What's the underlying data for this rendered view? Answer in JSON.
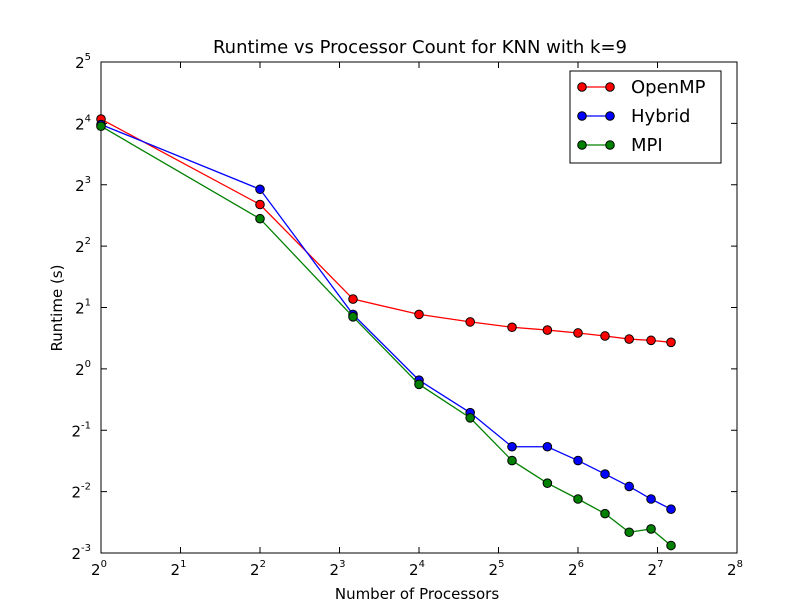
{
  "chart_data": {
    "type": "line",
    "title": "Runtime vs Processor Count for KNN with k=9",
    "xlabel": "Number of Processors",
    "ylabel": "Runtime (s)",
    "x_scale": "log2",
    "y_scale": "log2",
    "xlim": [
      1,
      256
    ],
    "ylim": [
      0.125,
      32
    ],
    "xticks": [
      {
        "base": "2",
        "exp": "0"
      },
      {
        "base": "2",
        "exp": "1"
      },
      {
        "base": "2",
        "exp": "2"
      },
      {
        "base": "2",
        "exp": "3"
      },
      {
        "base": "2",
        "exp": "4"
      },
      {
        "base": "2",
        "exp": "5"
      },
      {
        "base": "2",
        "exp": "6"
      },
      {
        "base": "2",
        "exp": "7"
      },
      {
        "base": "2",
        "exp": "8"
      }
    ],
    "yticks": [
      {
        "base": "2",
        "exp": "-3"
      },
      {
        "base": "2",
        "exp": "-2"
      },
      {
        "base": "2",
        "exp": "-1"
      },
      {
        "base": "2",
        "exp": "0"
      },
      {
        "base": "2",
        "exp": "1"
      },
      {
        "base": "2",
        "exp": "2"
      },
      {
        "base": "2",
        "exp": "3"
      },
      {
        "base": "2",
        "exp": "4"
      },
      {
        "base": "2",
        "exp": "5"
      }
    ],
    "grid": false,
    "legend_position": "top-right",
    "x": [
      1,
      4,
      9,
      16,
      25,
      36,
      49,
      64,
      81,
      100,
      121,
      144
    ],
    "series": [
      {
        "name": "OpenMP",
        "color": "#ff0000",
        "values": [
          16.8,
          6.4,
          2.2,
          1.85,
          1.7,
          1.6,
          1.55,
          1.5,
          1.45,
          1.4,
          1.38,
          1.35
        ]
      },
      {
        "name": "Hybrid",
        "color": "#0000ff",
        "values": [
          15.8,
          7.6,
          1.85,
          0.88,
          0.61,
          0.415,
          0.415,
          0.355,
          0.305,
          0.265,
          0.23,
          0.205
        ]
      },
      {
        "name": "MPI",
        "color": "#008000",
        "values": [
          15.5,
          5.45,
          1.8,
          0.84,
          0.575,
          0.355,
          0.275,
          0.23,
          0.195,
          0.158,
          0.164,
          0.136
        ]
      }
    ]
  }
}
